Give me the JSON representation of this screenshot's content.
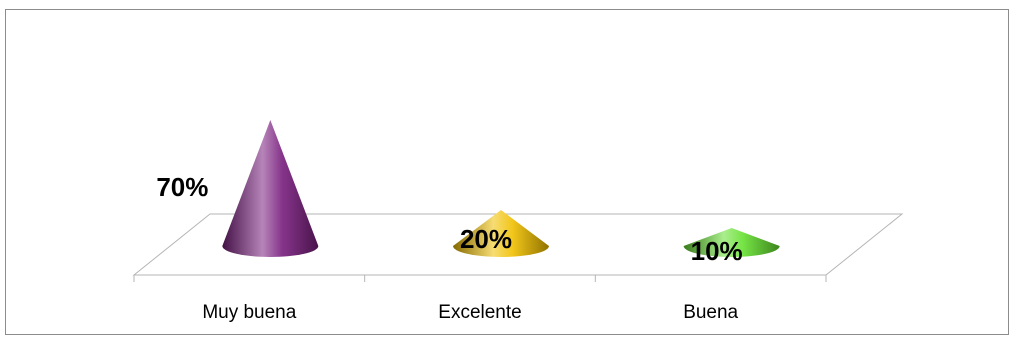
{
  "chart_data": {
    "type": "bar",
    "style": "3d-cone",
    "title": "",
    "xlabel": "",
    "ylabel": "",
    "ylim": [
      0,
      100
    ],
    "grid": false,
    "legend": "none",
    "categories": [
      "Muy buena",
      "Excelente",
      "Buena"
    ],
    "values": [
      70,
      20,
      10
    ],
    "data_labels": [
      "70%",
      "20%",
      "10%"
    ],
    "colors": [
      "#7a1f7e",
      "#f0c000",
      "#66e030"
    ]
  }
}
